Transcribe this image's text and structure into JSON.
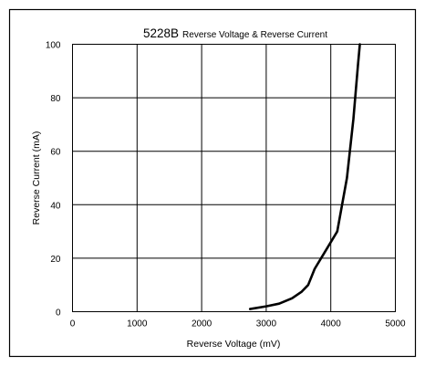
{
  "chart_data": {
    "type": "line",
    "title": "5228B",
    "subtitle": "Reverse Voltage & Reverse Current",
    "xlabel": "Reverse Voltage (mV)",
    "ylabel": "Reverse Current (mA)",
    "xlim": [
      0,
      5000
    ],
    "ylim": [
      0,
      100
    ],
    "xticks": [
      0,
      1000,
      2000,
      3000,
      4000,
      5000
    ],
    "yticks": [
      0,
      20,
      40,
      60,
      80,
      100
    ],
    "grid": true,
    "series": [
      {
        "x": [
          2750,
          3000,
          3200,
          3400,
          3550,
          3650,
          3750,
          3900,
          4100,
          4250,
          4350,
          4420,
          4450
        ],
        "y": [
          1,
          2,
          3,
          5,
          7.5,
          10,
          16,
          22,
          30,
          50,
          72,
          92,
          100
        ]
      }
    ]
  }
}
